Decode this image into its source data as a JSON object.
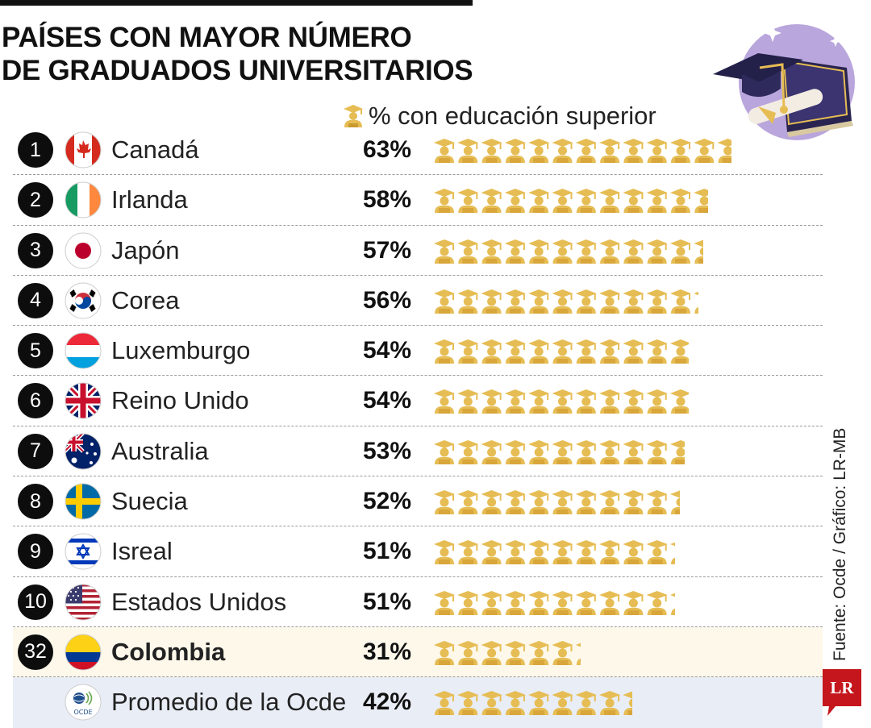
{
  "header": {
    "title_line1": "PAÍSES CON MAYOR NÚMERO",
    "title_line2": "DE GRADUADOS UNIVERSITARIOS"
  },
  "legend": {
    "label": "% con educación superior",
    "icon": "graduate-icon"
  },
  "colors": {
    "icon_gold": "#e6bd54",
    "highlight_row": "#fdf8ea",
    "average_row": "#e9edf6",
    "rank_circle": "#0d0d0d"
  },
  "chart_data": {
    "type": "bar",
    "unit": "%",
    "categories": [
      "Canadá",
      "Irlanda",
      "Japón",
      "Corea",
      "Luxemburgo",
      "Reino Unido",
      "Australia",
      "Suecia",
      "Isreal",
      "Estados Unidos",
      "Colombia",
      "Promedio de la Ocde"
    ],
    "values": [
      63,
      58,
      57,
      56,
      54,
      54,
      53,
      52,
      51,
      51,
      31,
      42
    ],
    "ranks": [
      "1",
      "2",
      "3",
      "4",
      "5",
      "6",
      "7",
      "8",
      "9",
      "10",
      "32",
      ""
    ],
    "value_labels": [
      "63%",
      "58%",
      "57%",
      "56%",
      "54%",
      "54%",
      "53%",
      "52%",
      "51%",
      "51%",
      "31%",
      "42%"
    ],
    "flags": [
      "canada-flag",
      "ireland-flag",
      "japan-flag",
      "korea-flag",
      "luxembourg-flag",
      "uk-flag",
      "australia-flag",
      "sweden-flag",
      "israel-flag",
      "usa-flag",
      "colombia-flag",
      "ocde-logo"
    ],
    "highlight": "Colombia",
    "average": "Promedio de la Ocde"
  },
  "footer": {
    "source": "Fuente: Ocde / Gráfico: LR-MB",
    "logo_text": "LR"
  }
}
